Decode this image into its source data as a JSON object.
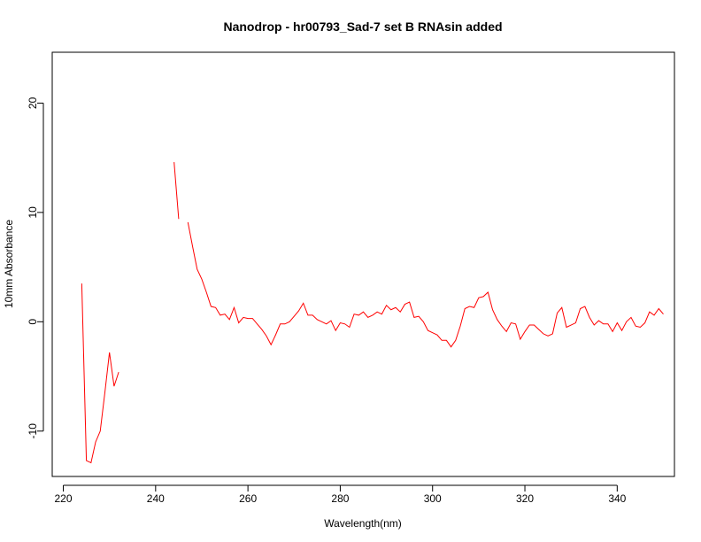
{
  "chart_data": {
    "type": "line",
    "title": "Nanodrop - hr00793_Sad-7 set B RNAsin added",
    "xlabel": "Wavelength(nm)",
    "ylabel": "10mm Absorbance",
    "xlim": [
      217.6,
      352.4
    ],
    "ylim": [
      -14.15,
      24.65
    ],
    "xticks": [
      220,
      240,
      260,
      280,
      300,
      320,
      340
    ],
    "yticks": [
      -10,
      0,
      10,
      20
    ],
    "grid": false,
    "series_color": "#ff0000",
    "segments": [
      [
        [
          224,
          3.5
        ],
        [
          225,
          -12.7
        ],
        [
          226,
          -12.9
        ],
        [
          227,
          -11.0
        ],
        [
          228,
          -10.0
        ],
        [
          229,
          -6.5
        ],
        [
          230,
          -2.8
        ],
        [
          231,
          -5.9
        ],
        [
          232,
          -4.6
        ]
      ],
      [
        [
          244,
          14.6
        ],
        [
          245,
          9.4
        ]
      ],
      [
        [
          247,
          9.1
        ],
        [
          248,
          6.9
        ],
        [
          249,
          4.8
        ],
        [
          250,
          3.9
        ],
        [
          251,
          2.7
        ],
        [
          252,
          1.4
        ],
        [
          253,
          1.3
        ],
        [
          254,
          0.6
        ],
        [
          255,
          0.7
        ],
        [
          256,
          0.2
        ],
        [
          257,
          1.3
        ],
        [
          258,
          -0.1
        ],
        [
          259,
          0.4
        ],
        [
          260,
          0.3
        ],
        [
          261,
          0.3
        ],
        [
          262,
          -0.2
        ],
        [
          263,
          -0.7
        ],
        [
          264,
          -1.3
        ],
        [
          265,
          -2.1
        ],
        [
          266,
          -1.2
        ],
        [
          267,
          -0.2
        ],
        [
          268,
          -0.2
        ],
        [
          269,
          0.0
        ],
        [
          270,
          0.5
        ],
        [
          271,
          1.0
        ],
        [
          272,
          1.7
        ],
        [
          273,
          0.6
        ],
        [
          274,
          0.6
        ],
        [
          275,
          0.2
        ],
        [
          276,
          0.0
        ],
        [
          277,
          -0.2
        ],
        [
          278,
          0.1
        ],
        [
          279,
          -0.8
        ],
        [
          280,
          -0.1
        ],
        [
          281,
          -0.2
        ],
        [
          282,
          -0.5
        ],
        [
          283,
          0.7
        ],
        [
          284,
          0.6
        ],
        [
          285,
          0.9
        ],
        [
          286,
          0.4
        ],
        [
          287,
          0.6
        ],
        [
          288,
          0.9
        ],
        [
          289,
          0.7
        ],
        [
          290,
          1.5
        ],
        [
          291,
          1.1
        ],
        [
          292,
          1.3
        ],
        [
          293,
          0.9
        ],
        [
          294,
          1.6
        ],
        [
          295,
          1.8
        ],
        [
          296,
          0.4
        ],
        [
          297,
          0.5
        ],
        [
          298,
          0.0
        ],
        [
          299,
          -0.8
        ],
        [
          300,
          -1.0
        ],
        [
          301,
          -1.2
        ],
        [
          302,
          -1.7
        ],
        [
          303,
          -1.7
        ],
        [
          304,
          -2.3
        ],
        [
          305,
          -1.7
        ],
        [
          306,
          -0.4
        ],
        [
          307,
          1.2
        ],
        [
          308,
          1.4
        ],
        [
          309,
          1.3
        ],
        [
          310,
          2.2
        ],
        [
          311,
          2.3
        ],
        [
          312,
          2.7
        ],
        [
          313,
          1.1
        ],
        [
          314,
          0.2
        ],
        [
          315,
          -0.4
        ],
        [
          316,
          -0.9
        ],
        [
          317,
          -0.1
        ],
        [
          318,
          -0.2
        ],
        [
          319,
          -1.6
        ],
        [
          320,
          -0.9
        ],
        [
          321,
          -0.3
        ],
        [
          322,
          -0.3
        ],
        [
          323,
          -0.7
        ],
        [
          324,
          -1.1
        ],
        [
          325,
          -1.3
        ],
        [
          326,
          -1.1
        ],
        [
          327,
          0.8
        ],
        [
          328,
          1.3
        ],
        [
          329,
          -0.5
        ],
        [
          330,
          -0.3
        ],
        [
          331,
          -0.1
        ],
        [
          332,
          1.2
        ],
        [
          333,
          1.4
        ],
        [
          334,
          0.4
        ],
        [
          335,
          -0.3
        ],
        [
          336,
          0.1
        ],
        [
          337,
          -0.2
        ],
        [
          338,
          -0.2
        ],
        [
          339,
          -0.9
        ],
        [
          340,
          -0.1
        ],
        [
          341,
          -0.8
        ],
        [
          342,
          0.0
        ],
        [
          343,
          0.4
        ],
        [
          344,
          -0.4
        ],
        [
          345,
          -0.5
        ],
        [
          346,
          -0.1
        ],
        [
          347,
          0.9
        ],
        [
          348,
          0.6
        ],
        [
          349,
          1.2
        ],
        [
          350,
          0.7
        ]
      ]
    ]
  }
}
